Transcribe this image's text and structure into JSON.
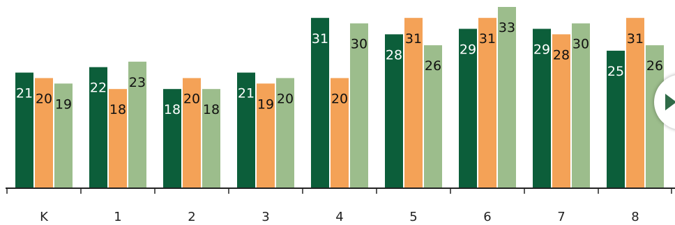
{
  "chart_data": {
    "type": "bar",
    "categories": [
      "K",
      "1",
      "2",
      "3",
      "4",
      "5",
      "6",
      "7",
      "8"
    ],
    "series": [
      {
        "values": [
          21,
          22,
          18,
          21,
          31,
          28,
          29,
          29,
          25
        ],
        "color": "#0c5e3a",
        "label_color": "#ffffff"
      },
      {
        "values": [
          20,
          18,
          20,
          19,
          20,
          31,
          31,
          28,
          31
        ],
        "color": "#f4a257",
        "label_color": "#111111"
      },
      {
        "values": [
          19,
          23,
          18,
          20,
          30,
          26,
          33,
          30,
          26
        ],
        "color": "#9cbd8c",
        "label_color": "#111111"
      }
    ],
    "ylim": [
      0,
      33
    ],
    "grid": false,
    "legend": false
  },
  "nav": {
    "next_icon": "chevron-right-icon"
  }
}
